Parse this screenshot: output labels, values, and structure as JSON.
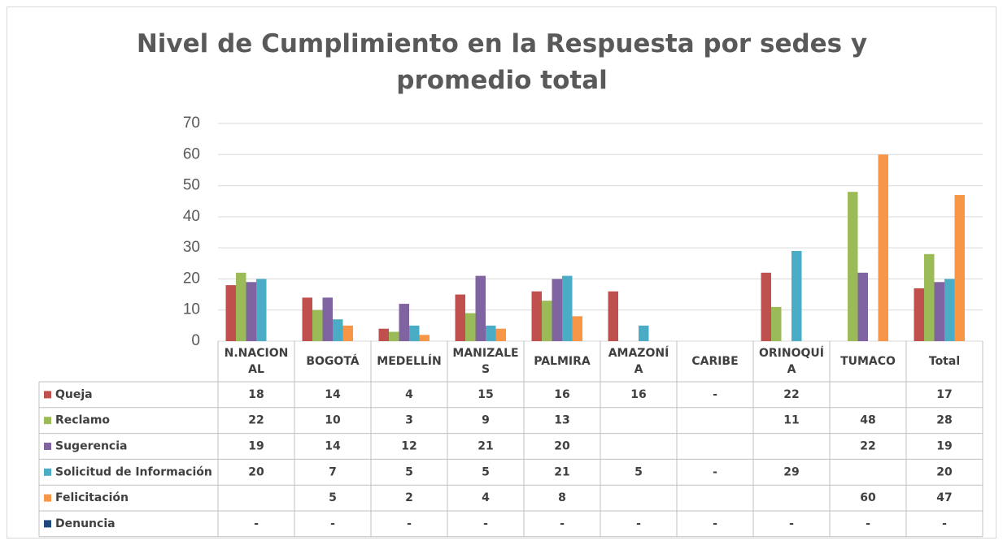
{
  "chart_data": {
    "type": "bar",
    "title": "Nivel de Cumplimiento en la Respuesta por sedes y promedio total",
    "categories": [
      "N.NACIONAL",
      "BOGOTÁ",
      "MEDELLÍN",
      "MANIZALES",
      "PALMIRA",
      "AMAZONÍA",
      "CARIBE",
      "ORINOQUÍA",
      "TUMACO",
      "Total"
    ],
    "series": [
      {
        "name": "Queja",
        "color": "#c0504d",
        "values": [
          18,
          14,
          4,
          15,
          16,
          16,
          0,
          22,
          null,
          17
        ],
        "value_labels": [
          null,
          null,
          null,
          null,
          null,
          null,
          "-",
          null,
          null,
          null
        ]
      },
      {
        "name": "Reclamo",
        "color": "#9bbb59",
        "values": [
          22,
          10,
          3,
          9,
          13,
          null,
          null,
          11,
          48,
          28
        ]
      },
      {
        "name": "Sugerencia",
        "color": "#8064a2",
        "values": [
          19,
          14,
          12,
          21,
          20,
          null,
          null,
          null,
          22,
          19
        ]
      },
      {
        "name": "Solicitud de Información",
        "color": "#4bacc6",
        "values": [
          20,
          7,
          5,
          5,
          21,
          5,
          0,
          29,
          null,
          20
        ],
        "value_labels": [
          null,
          null,
          null,
          null,
          null,
          null,
          "-",
          null,
          null,
          null
        ]
      },
      {
        "name": "Felicitación",
        "color": "#f79646",
        "values": [
          null,
          5,
          2,
          4,
          8,
          null,
          null,
          null,
          60,
          47
        ]
      },
      {
        "name": "Denuncia",
        "color": "#1f497d",
        "values": [
          0,
          0,
          0,
          0,
          0,
          0,
          0,
          0,
          0,
          0
        ],
        "value_labels": [
          "-",
          "-",
          "-",
          "-",
          "-",
          "-",
          "-",
          "-",
          "-",
          "-"
        ]
      }
    ],
    "ylim": [
      0,
      70
    ],
    "yticks": [
      0,
      10,
      20,
      30,
      40,
      50,
      60,
      70
    ],
    "grid": true
  }
}
